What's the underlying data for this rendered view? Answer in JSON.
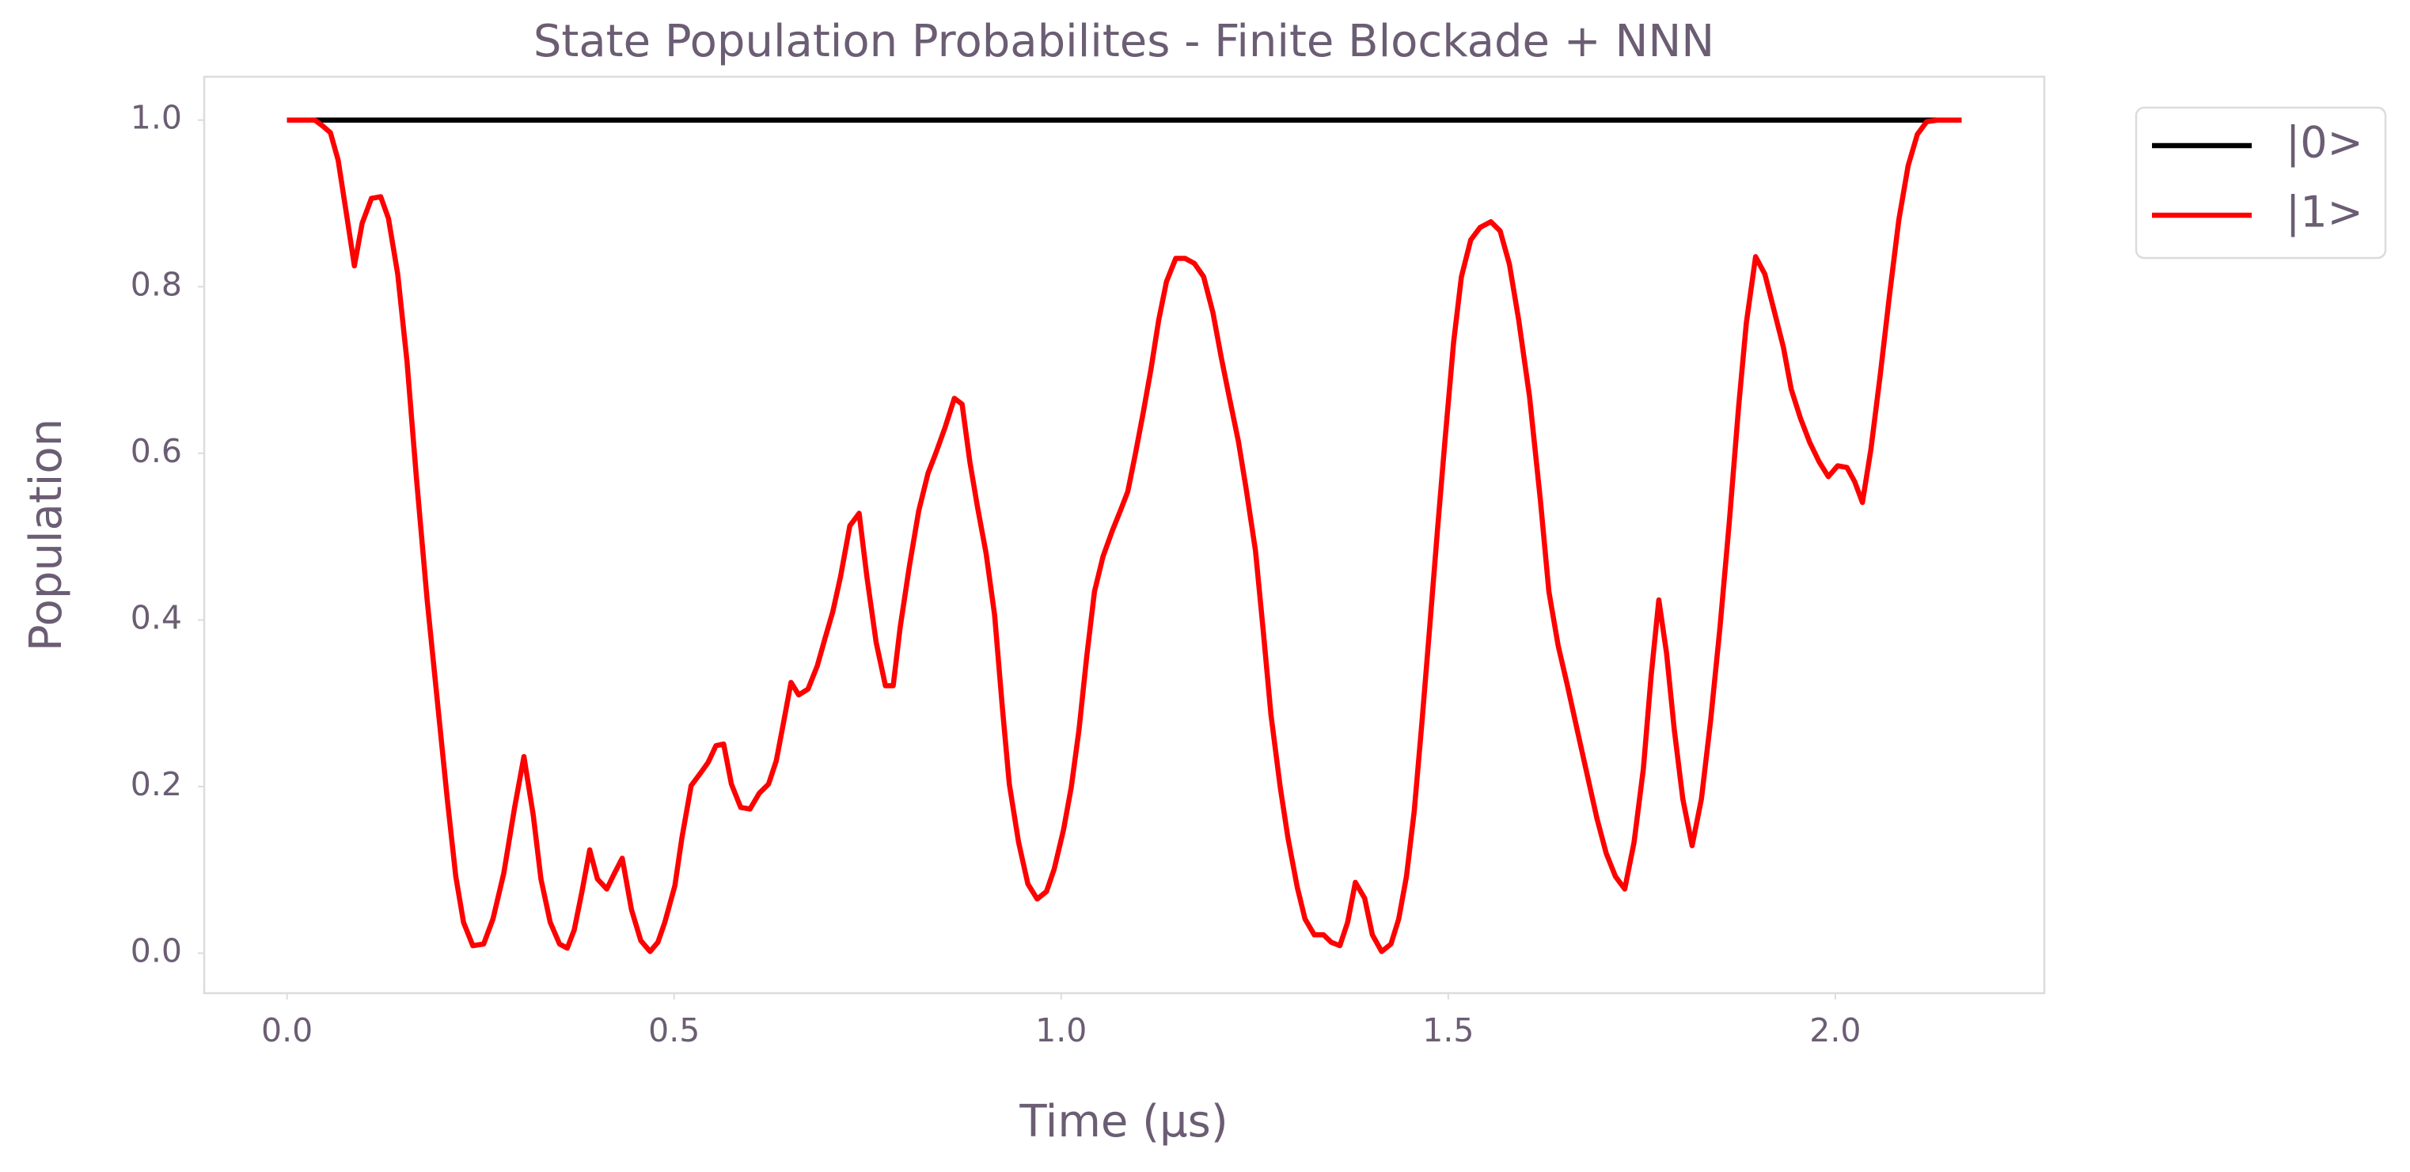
{
  "chart_data": {
    "type": "line",
    "title": "State Population Probabilites - Finite Blockade + NNN",
    "xlabel": "Time (μs)",
    "ylabel": "Population",
    "xlim": [
      -0.107,
      2.27
    ],
    "ylim": [
      -0.048,
      1.052
    ],
    "xticks": [
      {
        "value": 0,
        "label": "0.0"
      },
      0.5,
      {
        "value": 1,
        "label": "1.0"
      },
      1.5,
      {
        "value": 2,
        "label": "2.0"
      }
    ],
    "yticks": [
      {
        "value": 0,
        "label": "0.0"
      },
      0.2,
      0.4,
      0.6,
      0.8,
      {
        "value": 1,
        "label": "1.0"
      }
    ],
    "legend": "outside-upper-right",
    "series": [
      {
        "name": "|0>",
        "color": "#000000",
        "x": [
          0,
          2.163
        ],
        "values": [
          1,
          1
        ]
      },
      {
        "name": "|1>",
        "color": "#ff0000",
        "x": [
          0,
          0.036,
          0.046,
          0.056,
          0.066,
          0.077,
          0.087,
          0.097,
          0.109,
          0.121,
          0.131,
          0.143,
          0.155,
          0.167,
          0.181,
          0.195,
          0.207,
          0.218,
          0.228,
          0.24,
          0.254,
          0.266,
          0.28,
          0.294,
          0.306,
          0.318,
          0.328,
          0.34,
          0.352,
          0.362,
          0.371,
          0.381,
          0.391,
          0.401,
          0.413,
          0.423,
          0.433,
          0.445,
          0.457,
          0.469,
          0.479,
          0.488,
          0.501,
          0.51,
          0.522,
          0.534,
          0.544,
          0.554,
          0.564,
          0.574,
          0.586,
          0.598,
          0.61,
          0.622,
          0.632,
          0.642,
          0.651,
          0.661,
          0.673,
          0.685,
          0.695,
          0.705,
          0.715,
          0.727,
          0.739,
          0.749,
          0.761,
          0.773,
          0.783,
          0.792,
          0.804,
          0.816,
          0.828,
          0.838,
          0.85,
          0.862,
          0.872,
          0.882,
          0.892,
          0.903,
          0.914,
          0.924,
          0.933,
          0.945,
          0.957,
          0.969,
          0.981,
          0.991,
          1.003,
          1.013,
          1.023,
          1.033,
          1.043,
          1.054,
          1.066,
          1.076,
          1.086,
          1.096,
          1.106,
          1.116,
          1.126,
          1.136,
          1.148,
          1.16,
          1.172,
          1.184,
          1.196,
          1.207,
          1.217,
          1.229,
          1.239,
          1.251,
          1.261,
          1.271,
          1.283,
          1.293,
          1.305,
          1.315,
          1.327,
          1.339,
          1.349,
          1.36,
          1.37,
          1.38,
          1.392,
          1.402,
          1.414,
          1.426,
          1.436,
          1.446,
          1.456,
          1.466,
          1.476,
          1.486,
          1.496,
          1.507,
          1.517,
          1.529,
          1.541,
          1.555,
          1.567,
          1.579,
          1.591,
          1.605,
          1.619,
          1.63,
          1.642,
          1.654,
          1.668,
          1.68,
          1.692,
          1.704,
          1.716,
          1.728,
          1.74,
          1.752,
          1.762,
          1.772,
          1.782,
          1.792,
          1.803,
          1.815,
          1.827,
          1.839,
          1.851,
          1.863,
          1.875,
          1.885,
          1.897,
          1.909,
          1.921,
          1.933,
          1.943,
          1.955,
          1.967,
          1.979,
          1.991,
          2.003,
          2.015,
          2.025,
          2.035,
          2.046,
          2.058,
          2.07,
          2.082,
          2.094,
          2.106,
          2.118,
          2.132,
          2.163
        ],
        "values": [
          1,
          1,
          0.993,
          0.985,
          0.952,
          0.886,
          0.825,
          0.876,
          0.906,
          0.908,
          0.882,
          0.815,
          0.71,
          0.572,
          0.424,
          0.295,
          0.185,
          0.092,
          0.037,
          0.009,
          0.011,
          0.041,
          0.096,
          0.175,
          0.236,
          0.166,
          0.089,
          0.037,
          0.011,
          0.006,
          0.028,
          0.074,
          0.124,
          0.089,
          0.077,
          0.096,
          0.114,
          0.052,
          0.015,
          0.002,
          0.013,
          0.037,
          0.081,
          0.138,
          0.201,
          0.216,
          0.229,
          0.249,
          0.251,
          0.203,
          0.175,
          0.173,
          0.192,
          0.203,
          0.231,
          0.28,
          0.325,
          0.31,
          0.317,
          0.345,
          0.378,
          0.41,
          0.452,
          0.513,
          0.528,
          0.452,
          0.373,
          0.321,
          0.321,
          0.391,
          0.465,
          0.531,
          0.576,
          0.6,
          0.631,
          0.666,
          0.659,
          0.59,
          0.535,
          0.48,
          0.406,
          0.295,
          0.203,
          0.133,
          0.083,
          0.065,
          0.074,
          0.101,
          0.148,
          0.199,
          0.268,
          0.356,
          0.434,
          0.476,
          0.507,
          0.53,
          0.554,
          0.6,
          0.649,
          0.701,
          0.76,
          0.806,
          0.834,
          0.834,
          0.828,
          0.812,
          0.769,
          0.714,
          0.668,
          0.614,
          0.557,
          0.483,
          0.387,
          0.286,
          0.199,
          0.138,
          0.079,
          0.041,
          0.022,
          0.022,
          0.013,
          0.009,
          0.037,
          0.085,
          0.066,
          0.022,
          0.002,
          0.011,
          0.041,
          0.092,
          0.17,
          0.277,
          0.391,
          0.507,
          0.618,
          0.734,
          0.812,
          0.856,
          0.871,
          0.878,
          0.867,
          0.827,
          0.76,
          0.668,
          0.544,
          0.434,
          0.369,
          0.321,
          0.262,
          0.212,
          0.162,
          0.12,
          0.092,
          0.077,
          0.133,
          0.221,
          0.332,
          0.424,
          0.36,
          0.268,
          0.185,
          0.129,
          0.185,
          0.28,
          0.391,
          0.517,
          0.655,
          0.756,
          0.836,
          0.815,
          0.771,
          0.727,
          0.677,
          0.642,
          0.613,
          0.59,
          0.572,
          0.585,
          0.583,
          0.566,
          0.541,
          0.605,
          0.694,
          0.79,
          0.88,
          0.945,
          0.983,
          0.998,
          1,
          1
        ]
      }
    ]
  }
}
